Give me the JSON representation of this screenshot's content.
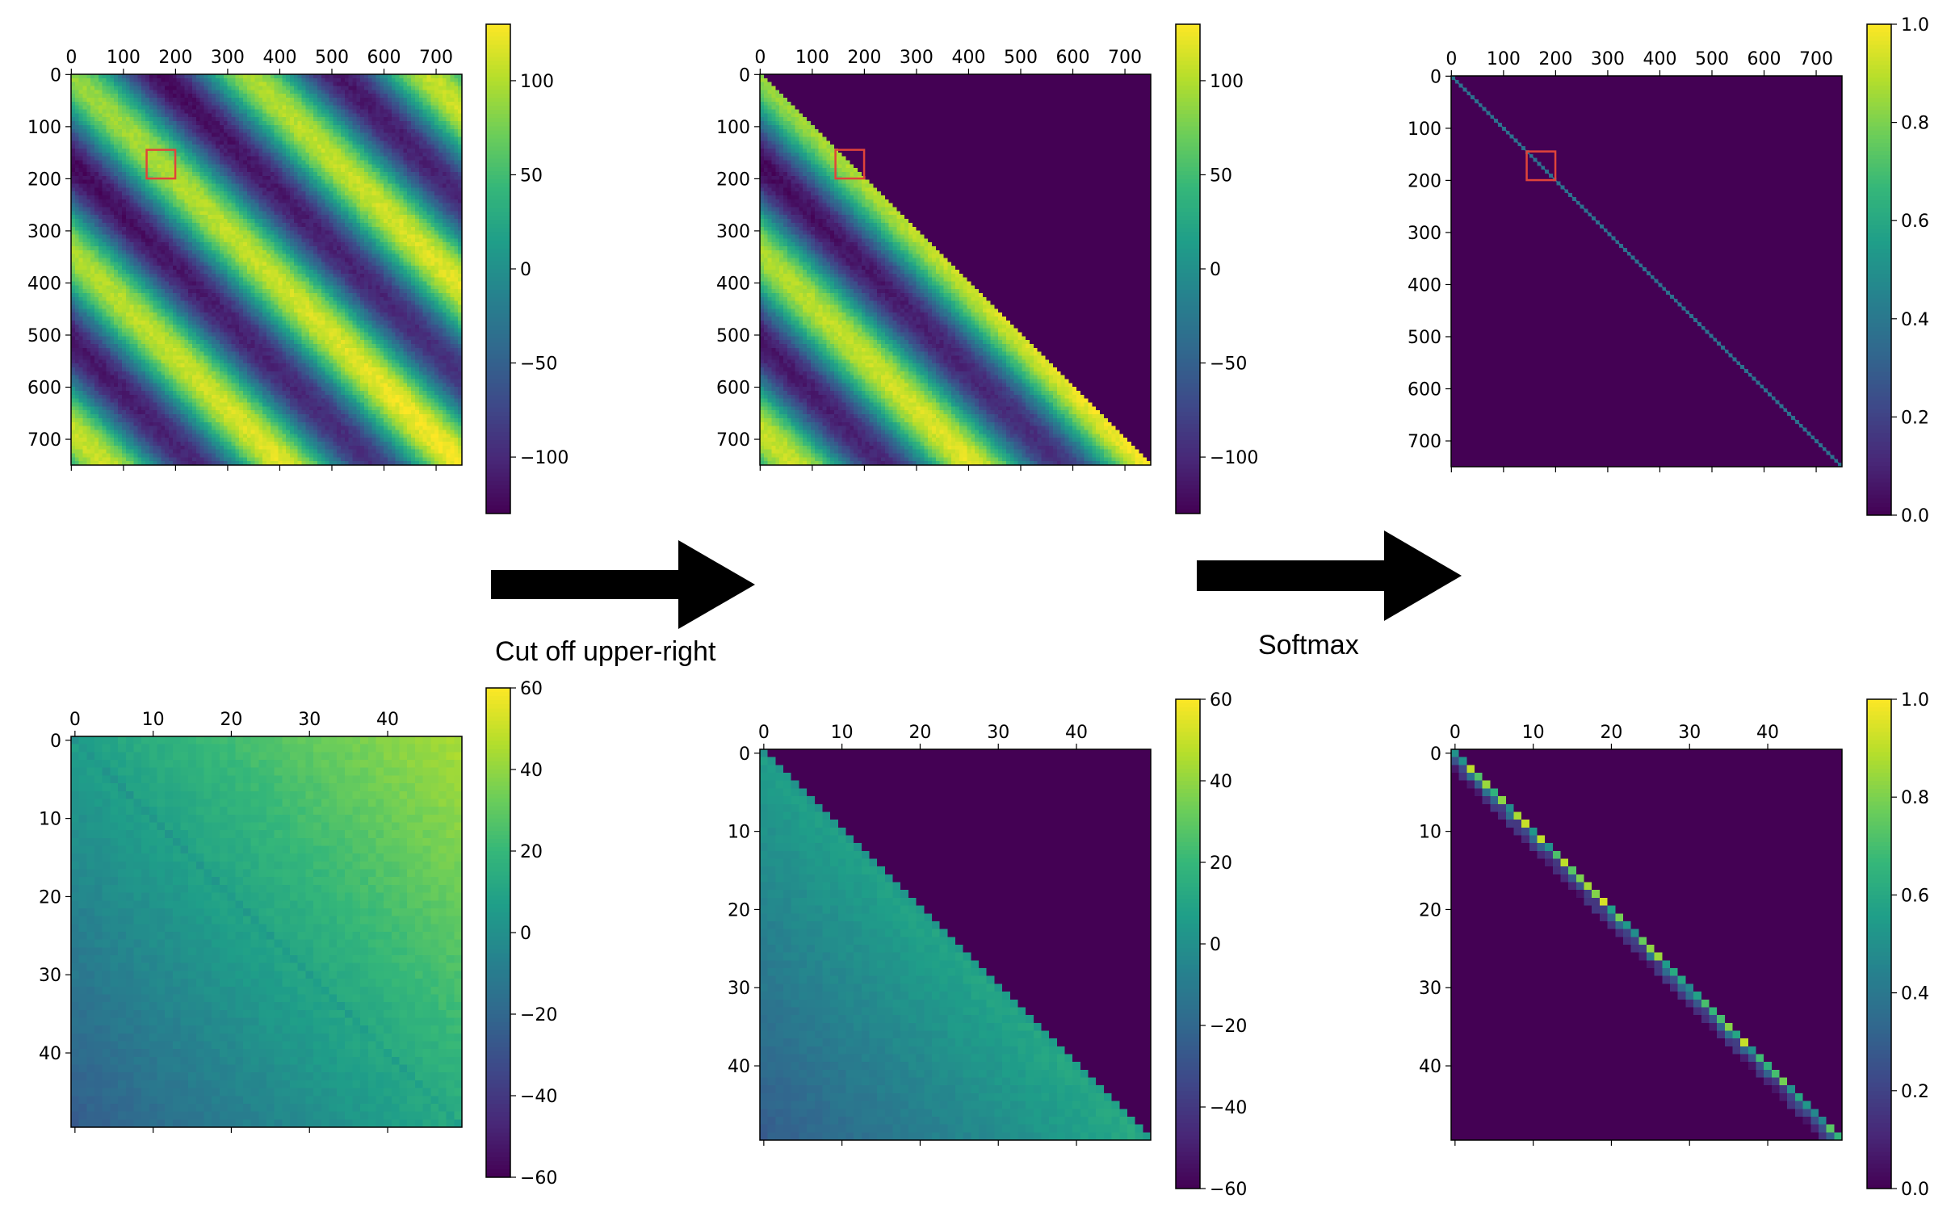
{
  "colors": {
    "viridis": [
      "#440154",
      "#482878",
      "#3e4989",
      "#31688e",
      "#26828e",
      "#1f9e89",
      "#35b779",
      "#6ece58",
      "#b5de2b",
      "#fde725"
    ],
    "highlight_box": "#e0443a",
    "arrow": "#000000"
  },
  "captions": {
    "cut_off": "Cut off upper-right",
    "softmax": "Softmax"
  },
  "chart_data": [
    {
      "type": "heatmap",
      "name": "raw-scores-full",
      "size": 750,
      "pattern": "bands",
      "mask": "none",
      "xticks": [
        "0",
        "100",
        "200",
        "300",
        "400",
        "500",
        "600",
        "700"
      ],
      "yticks": [
        "0",
        "100",
        "200",
        "300",
        "400",
        "500",
        "600",
        "700"
      ],
      "tick_values": [
        0,
        100,
        200,
        300,
        400,
        500,
        600,
        700
      ],
      "colorbar": {
        "min": -130,
        "max": 130,
        "ticks": [
          100,
          50,
          0,
          -50,
          -100
        ],
        "labels": [
          "100",
          "50",
          "0",
          "−50",
          "−100"
        ]
      },
      "highlight": {
        "x0": 145,
        "x1": 200,
        "y0": 145,
        "y1": 200
      }
    },
    {
      "type": "heatmap",
      "name": "masked-scores-full",
      "size": 750,
      "pattern": "bands",
      "mask": "upper",
      "xticks": [
        "0",
        "100",
        "200",
        "300",
        "400",
        "500",
        "600",
        "700"
      ],
      "yticks": [
        "0",
        "100",
        "200",
        "300",
        "400",
        "500",
        "600",
        "700"
      ],
      "tick_values": [
        0,
        100,
        200,
        300,
        400,
        500,
        600,
        700
      ],
      "colorbar": {
        "min": -130,
        "max": 130,
        "ticks": [
          100,
          50,
          0,
          -50,
          -100
        ],
        "labels": [
          "100",
          "50",
          "0",
          "−50",
          "−100"
        ]
      },
      "highlight": {
        "x0": 145,
        "x1": 200,
        "y0": 145,
        "y1": 200
      }
    },
    {
      "type": "heatmap",
      "name": "softmax-full",
      "size": 750,
      "pattern": "diag",
      "mask": "none",
      "xticks": [
        "0",
        "100",
        "200",
        "300",
        "400",
        "500",
        "600",
        "700"
      ],
      "yticks": [
        "0",
        "100",
        "200",
        "300",
        "400",
        "500",
        "600",
        "700"
      ],
      "tick_values": [
        0,
        100,
        200,
        300,
        400,
        500,
        600,
        700
      ],
      "colorbar": {
        "min": 0,
        "max": 1,
        "ticks": [
          1,
          0.8,
          0.6,
          0.4,
          0.2,
          0
        ],
        "labels": [
          "1.0",
          "0.8",
          "0.6",
          "0.4",
          "0.2",
          "0.0"
        ]
      },
      "highlight": {
        "x0": 145,
        "x1": 200,
        "y0": 145,
        "y1": 200
      }
    },
    {
      "type": "heatmap",
      "name": "raw-scores-zoom",
      "size": 50,
      "pattern": "grad",
      "mask": "none",
      "xticks": [
        "0",
        "10",
        "20",
        "30",
        "40"
      ],
      "yticks": [
        "0",
        "10",
        "20",
        "30",
        "40"
      ],
      "tick_values": [
        0,
        10,
        20,
        30,
        40
      ],
      "colorbar": {
        "min": -60,
        "max": 60,
        "ticks": [
          60,
          40,
          20,
          0,
          -20,
          -40,
          -60
        ],
        "labels": [
          "60",
          "40",
          "20",
          "0",
          "−20",
          "−40",
          "−60"
        ]
      }
    },
    {
      "type": "heatmap",
      "name": "masked-scores-zoom",
      "size": 50,
      "pattern": "grad",
      "mask": "upper",
      "xticks": [
        "0",
        "10",
        "20",
        "30",
        "40"
      ],
      "yticks": [
        "0",
        "10",
        "20",
        "30",
        "40"
      ],
      "tick_values": [
        0,
        10,
        20,
        30,
        40
      ],
      "colorbar": {
        "min": -60,
        "max": 60,
        "ticks": [
          60,
          40,
          20,
          0,
          -20,
          -40,
          -60
        ],
        "labels": [
          "60",
          "40",
          "20",
          "0",
          "−20",
          "−40",
          "−60"
        ]
      }
    },
    {
      "type": "heatmap",
      "name": "softmax-zoom",
      "size": 50,
      "pattern": "softdiag",
      "mask": "none",
      "xticks": [
        "0",
        "10",
        "20",
        "30",
        "40"
      ],
      "yticks": [
        "0",
        "10",
        "20",
        "30",
        "40"
      ],
      "tick_values": [
        0,
        10,
        20,
        30,
        40
      ],
      "colorbar": {
        "min": 0,
        "max": 1,
        "ticks": [
          1,
          0.8,
          0.6,
          0.4,
          0.2,
          0
        ],
        "labels": [
          "1.0",
          "0.8",
          "0.6",
          "0.4",
          "0.2",
          "0.0"
        ]
      }
    }
  ]
}
